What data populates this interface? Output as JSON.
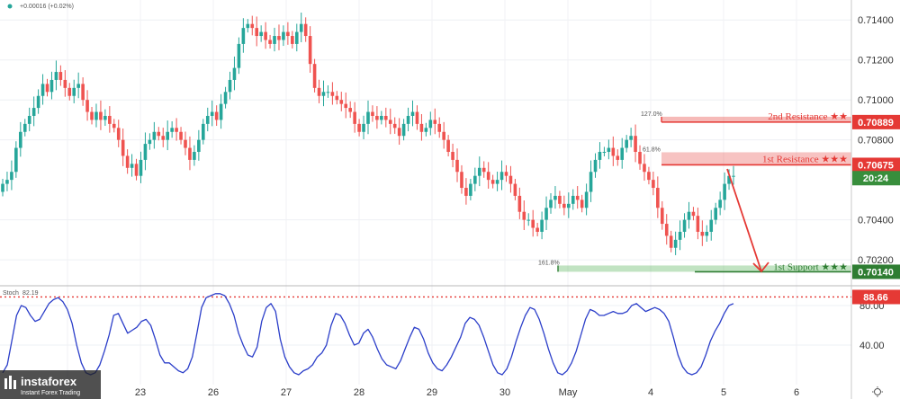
{
  "header": {
    "change_text": "+0.00016 (+0.02%)"
  },
  "colors": {
    "bull": "#26a69a",
    "bear": "#ef5350",
    "resistance": "#e53935",
    "support": "#2e7d32",
    "stoch_line": "#2b3ec9",
    "overbought_line": "#e53935",
    "countdown_bg": "#388e3c"
  },
  "chart_data": [
    {
      "type": "candlestick",
      "title": "",
      "x_labels": [
        "23",
        "26",
        "27",
        "28",
        "29",
        "30",
        "May",
        "4",
        "5",
        "6"
      ],
      "y_ticks": [
        "0.71400",
        "0.71200",
        "0.71000",
        "0.70800",
        "0.70400",
        "0.70200"
      ],
      "ylim": [
        0.7007,
        0.715
      ],
      "series": [
        {
          "values": [
            0.7058,
            0.706,
            0.7064,
            0.7076,
            0.7084,
            0.7088,
            0.7092,
            0.7096,
            0.7102,
            0.7108,
            0.7104,
            0.711,
            0.7114,
            0.711,
            0.7106,
            0.7102,
            0.7106,
            0.7108,
            0.71,
            0.7094,
            0.709,
            0.7094,
            0.709,
            0.7092,
            0.7088,
            0.7086,
            0.708,
            0.7072,
            0.7066,
            0.7068,
            0.7062,
            0.707,
            0.7078,
            0.708,
            0.7084,
            0.7082,
            0.708,
            0.7084,
            0.7086,
            0.7084,
            0.708,
            0.7076,
            0.707,
            0.7074,
            0.708,
            0.7088,
            0.7092,
            0.7094,
            0.709,
            0.7098,
            0.7104,
            0.711,
            0.7116,
            0.7128,
            0.7136,
            0.7138,
            0.7136,
            0.7132,
            0.7134,
            0.713,
            0.7128,
            0.7132,
            0.713,
            0.7134,
            0.7132,
            0.7128,
            0.7134,
            0.7138,
            0.7132,
            0.7118,
            0.7106,
            0.7102,
            0.7104,
            0.7104,
            0.7102,
            0.71,
            0.7098,
            0.7096,
            0.7094,
            0.7088,
            0.7084,
            0.7088,
            0.7094,
            0.7092,
            0.709,
            0.7092,
            0.709,
            0.7088,
            0.7086,
            0.7082,
            0.7088,
            0.7092,
            0.7094,
            0.7088,
            0.7084,
            0.7086,
            0.709,
            0.7088,
            0.7084,
            0.708,
            0.7074,
            0.707,
            0.7064,
            0.7056,
            0.7052,
            0.7058,
            0.7062,
            0.7066,
            0.7064,
            0.706,
            0.7058,
            0.706,
            0.7064,
            0.7062,
            0.7058,
            0.7052,
            0.7044,
            0.704,
            0.704,
            0.7036,
            0.7034,
            0.704,
            0.7046,
            0.705,
            0.7052,
            0.7048,
            0.7046,
            0.7048,
            0.7052,
            0.705,
            0.7046,
            0.7054,
            0.7064,
            0.707,
            0.7074,
            0.7074,
            0.7076,
            0.7072,
            0.707,
            0.7076,
            0.708,
            0.7082,
            0.7074,
            0.7068,
            0.7064,
            0.706,
            0.7056,
            0.7046,
            0.7038,
            0.7032,
            0.7026,
            0.703,
            0.7034,
            0.704,
            0.7044,
            0.7042,
            0.7034,
            0.7032,
            0.7034,
            0.704,
            0.7046,
            0.705,
            0.7058,
            0.7062,
            0.7062
          ]
        }
      ],
      "levels": [
        {
          "label": "2nd Resistance ★★",
          "value": 0.70889,
          "tag": "0.70889",
          "fib": "127.0%"
        },
        {
          "label": "1st Resistance ★★★",
          "value": 0.70675,
          "tag": "0.70675",
          "fib": "61.8%"
        },
        {
          "label": "1st Support ★★★",
          "value": 0.7014,
          "tag": "0.70140",
          "fib": "161.8%"
        }
      ],
      "countdown": "20:24"
    },
    {
      "type": "line",
      "title": "Stoch",
      "legend_value": "82.19",
      "y_ticks": [
        "80.00",
        "40.00"
      ],
      "ylim": [
        0,
        100
      ],
      "overbought": 88.66,
      "overbought_tag": "88.66",
      "series": [
        {
          "values": [
            12,
            20,
            45,
            70,
            80,
            78,
            70,
            64,
            66,
            74,
            82,
            86,
            88,
            84,
            76,
            62,
            40,
            22,
            12,
            10,
            12,
            20,
            34,
            50,
            70,
            72,
            62,
            52,
            55,
            58,
            64,
            66,
            60,
            46,
            30,
            22,
            22,
            18,
            14,
            12,
            16,
            28,
            52,
            78,
            88,
            90,
            92,
            92,
            90,
            82,
            70,
            52,
            40,
            30,
            28,
            38,
            64,
            78,
            82,
            74,
            46,
            28,
            18,
            12,
            10,
            14,
            16,
            20,
            28,
            32,
            40,
            60,
            72,
            70,
            62,
            50,
            40,
            42,
            52,
            56,
            48,
            36,
            26,
            20,
            18,
            16,
            24,
            36,
            48,
            58,
            56,
            46,
            32,
            22,
            16,
            14,
            20,
            28,
            38,
            48,
            62,
            68,
            66,
            60,
            48,
            34,
            20,
            12,
            10,
            16,
            28,
            44,
            58,
            70,
            78,
            76,
            66,
            52,
            36,
            22,
            12,
            10,
            14,
            22,
            34,
            50,
            66,
            76,
            74,
            70,
            70,
            72,
            74,
            72,
            72,
            74,
            80,
            82,
            78,
            74,
            76,
            78,
            76,
            72,
            64,
            48,
            30,
            18,
            12,
            10,
            12,
            18,
            30,
            44,
            54,
            62,
            72,
            80,
            82
          ]
        }
      ]
    }
  ],
  "logo": {
    "name": "instaforex",
    "tagline": "Instant Forex Trading"
  }
}
